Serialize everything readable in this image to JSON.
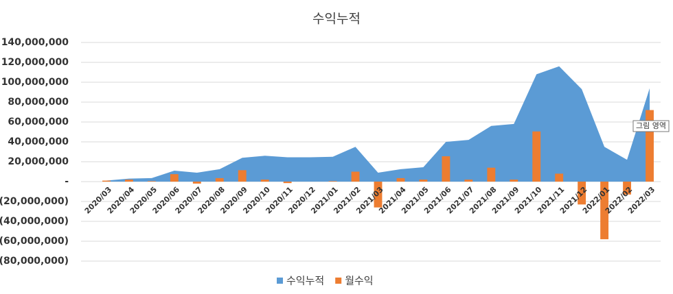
{
  "chart_data": {
    "type": "combo",
    "title": "수익누적",
    "categories": [
      "2020/03",
      "2020/04",
      "2020/05",
      "2020/06",
      "2020/07",
      "2020/08",
      "2020/09",
      "2020/10",
      "2020/11",
      "2020/12",
      "2021/01",
      "2021/02",
      "2021/03",
      "2021/04",
      "2021/05",
      "2021/06",
      "2021/07",
      "2021/08",
      "2021/09",
      "2021/10",
      "2021/11",
      "2021/12",
      "2022/01",
      "2022/02",
      "2022/03"
    ],
    "series": [
      {
        "name": "수익누적",
        "type": "area",
        "color": "#5b9bd5",
        "values": [
          1000000,
          3000000,
          3500000,
          11000000,
          9000000,
          12500000,
          24000000,
          26000000,
          24500000,
          24500000,
          25000000,
          35000000,
          9000000,
          12500000,
          14500000,
          40000000,
          42000000,
          56000000,
          58000000,
          108000000,
          116000000,
          93000000,
          35000000,
          22000000,
          94000000
        ]
      },
      {
        "name": "월수익",
        "type": "bar",
        "color": "#ed7d31",
        "values": [
          1000000,
          2000000,
          500000,
          7500000,
          -2000000,
          3500000,
          11500000,
          2000000,
          -1500000,
          0,
          500000,
          10000000,
          -26000000,
          3500000,
          2000000,
          25500000,
          2000000,
          14000000,
          2000000,
          50500000,
          8000000,
          -23000000,
          -58000000,
          -13000000,
          72000000
        ]
      }
    ],
    "ylim": [
      -80000000,
      140000000
    ],
    "yticks": [
      {
        "value": -80000000,
        "label": "(80,000,000)"
      },
      {
        "value": -60000000,
        "label": "(60,000,000)"
      },
      {
        "value": -40000000,
        "label": "(40,000,000)"
      },
      {
        "value": -20000000,
        "label": "(20,000,000)"
      },
      {
        "value": 0,
        "label": "-"
      },
      {
        "value": 20000000,
        "label": "20,000,000"
      },
      {
        "value": 40000000,
        "label": "40,000,000"
      },
      {
        "value": 60000000,
        "label": "60,000,000"
      },
      {
        "value": 80000000,
        "label": "80,000,000"
      },
      {
        "value": 100000000,
        "label": "100,000,000"
      },
      {
        "value": 120000000,
        "label": "120,000,000"
      },
      {
        "value": 140000000,
        "label": "140,000,000"
      }
    ],
    "grid": true,
    "legend": "bottom",
    "annotation": "그림 영역"
  }
}
